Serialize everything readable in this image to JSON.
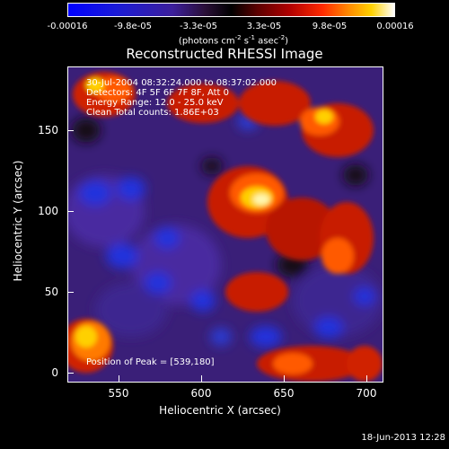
{
  "colorbar": {
    "tick_labels": [
      "-0.00016",
      "-9.8e-05",
      "-3.3e-05",
      "3.3e-05",
      "9.8e-05",
      "0.00016"
    ],
    "units": "(photons cm",
    "units_exp1": "-2",
    "units_mid": " s",
    "units_exp2": "-1",
    "units_end": " asec",
    "units_exp3": "-2",
    "units_close": ")",
    "colors": [
      "#0000ff",
      "#3c1f9b",
      "#000000",
      "#b10000",
      "#ff8a00",
      "#ffffff"
    ]
  },
  "title": "Reconstructed RHESSI Image",
  "info": {
    "line1": "30-Jul-2004 08:32:24.000 to 08:37:02.000",
    "line2": "Detectors: 4F 5F 6F 7F 8F, Att 0",
    "line3": "Energy Range: 12.0 - 25.0 keV",
    "line4": "Clean     Total counts: 1.86E+03"
  },
  "peak": "Position of Peak = [539,180]",
  "axes": {
    "x_label": "Heliocentric X (arcsec)",
    "y_label": "Heliocentric Y (arcsec)",
    "x_ticks": [
      "550",
      "600",
      "650",
      "700"
    ],
    "y_ticks": [
      "0",
      "50",
      "100",
      "150"
    ],
    "x_range": [
      520,
      712
    ],
    "y_range": [
      -8,
      184
    ]
  },
  "timestamp": "18-Jun-2013 12:28"
}
